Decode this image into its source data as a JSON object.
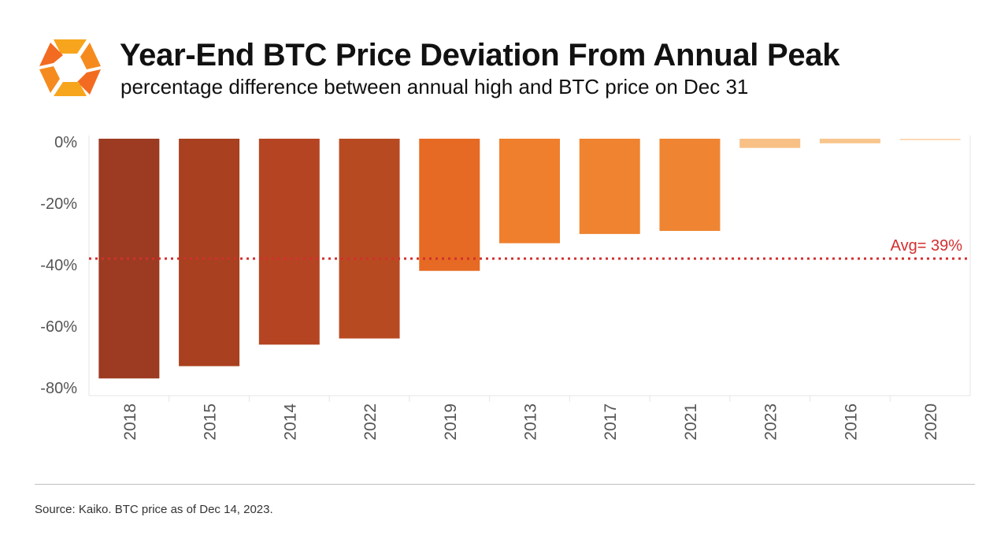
{
  "header": {
    "title": "Year-End BTC Price Deviation From Annual Peak",
    "subtitle": "percentage difference between annual high and BTC price on Dec 31"
  },
  "footer": {
    "source": "Source: Kaiko. BTC price as of Dec 14, 2023."
  },
  "logo": {
    "icon": "kaiko-logo-icon",
    "colors": [
      "#f7a51c",
      "#f26b21"
    ]
  },
  "chart_data": {
    "type": "bar",
    "title": "Year-End BTC Price Deviation From Annual Peak",
    "subtitle": "percentage difference between annual high and BTC price on Dec 31",
    "xlabel": "",
    "ylabel": "",
    "categories": [
      "2018",
      "2015",
      "2014",
      "2022",
      "2019",
      "2013",
      "2017",
      "2021",
      "2023",
      "2016",
      "2020"
    ],
    "values": [
      -78,
      -74,
      -67,
      -65,
      -43,
      -34,
      -31,
      -30,
      -3,
      -1.5,
      -0.5
    ],
    "colors": [
      "#9c3b22",
      "#a9401f",
      "#b54522",
      "#b84a22",
      "#e66a23",
      "#ef7f2c",
      "#ef8330",
      "#ef8532",
      "#f8c085",
      "#f8c58e",
      "#fbd9b5"
    ],
    "ylim": [
      -80,
      0
    ],
    "yticks": [
      0,
      -20,
      -40,
      -60,
      -80
    ],
    "ytick_labels": [
      "0%",
      "-20%",
      "-40%",
      "-60%",
      "-80%"
    ],
    "avg_line": {
      "value": -39,
      "label": "Avg= 39%",
      "color": "#d32f2f",
      "style": "dotted"
    },
    "grid": false,
    "legend": "none"
  }
}
